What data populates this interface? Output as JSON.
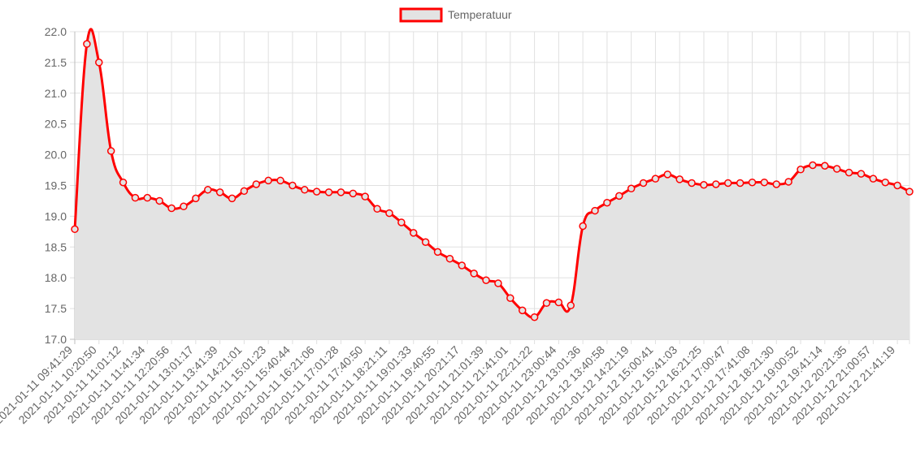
{
  "colors": {
    "line": "#ff0000",
    "fill": "#e3e3e3",
    "grid": "#e0e0e0",
    "axis": "#bdbdbd",
    "text": "#666666"
  },
  "chart_data": {
    "type": "area",
    "title": "",
    "xlabel": "",
    "ylabel": "",
    "legend": "top-center",
    "grid": true,
    "ylim": [
      17.0,
      22.0
    ],
    "y_ticks": [
      17.0,
      17.5,
      18.0,
      18.5,
      19.0,
      19.5,
      20.0,
      20.5,
      21.0,
      21.5,
      22.0
    ],
    "y_tick_labels": [
      "17.0",
      "17.5",
      "18.0",
      "18.5",
      "19.0",
      "19.5",
      "20.0",
      "20.5",
      "21.0",
      "21.5",
      "22.0"
    ],
    "x_tick_labels": [
      "2021-01-11 09:41:29",
      "2021-01-11 10:20:50",
      "2021-01-11 11:01:12",
      "2021-01-11 11:41:34",
      "2021-01-11 12:20:56",
      "2021-01-11 13:01:17",
      "2021-01-11 13:41:39",
      "2021-01-11 14:21:01",
      "2021-01-11 15:01:23",
      "2021-01-11 15:40:44",
      "2021-01-11 16:21:06",
      "2021-01-11 17:01:28",
      "2021-01-11 17:40:50",
      "2021-01-11 18:21:11",
      "2021-01-11 19:01:33",
      "2021-01-11 19:40:55",
      "2021-01-11 20:21:17",
      "2021-01-11 21:01:39",
      "2021-01-11 21:41:01",
      "2021-01-11 22:21:22",
      "2021-01-11 23:00:44",
      "2021-01-12 13:01:36",
      "2021-01-12 13:40:58",
      "2021-01-12 14:21:19",
      "2021-01-12 15:00:41",
      "2021-01-12 15:41:03",
      "2021-01-12 16:21:25",
      "2021-01-12 17:00:47",
      "2021-01-12 17:41:08",
      "2021-01-12 18:21:30",
      "2021-01-12 19:00:52",
      "2021-01-12 19:41:14",
      "2021-01-12 20:21:35",
      "2021-01-12 21:00:57",
      "2021-01-12 21:41:19"
    ],
    "series": [
      {
        "name": "Temperatuur",
        "values": [
          18.79,
          21.8,
          21.5,
          20.06,
          19.55,
          19.3,
          19.3,
          19.25,
          19.13,
          19.16,
          19.29,
          19.43,
          19.39,
          19.29,
          19.41,
          19.52,
          19.58,
          19.58,
          19.5,
          19.43,
          19.4,
          19.39,
          19.39,
          19.37,
          19.32,
          19.12,
          19.05,
          18.9,
          18.73,
          18.58,
          18.42,
          18.31,
          18.2,
          18.07,
          17.96,
          17.91,
          17.67,
          17.47,
          17.36,
          17.59,
          17.6,
          17.55,
          18.84,
          19.09,
          19.22,
          19.33,
          19.45,
          19.54,
          19.61,
          19.68,
          19.6,
          19.54,
          19.51,
          19.52,
          19.54,
          19.54,
          19.55,
          19.55,
          19.52,
          19.56,
          19.76,
          19.83,
          19.82,
          19.77,
          19.71,
          19.69,
          19.61,
          19.55,
          19.5,
          19.4
        ]
      }
    ]
  }
}
